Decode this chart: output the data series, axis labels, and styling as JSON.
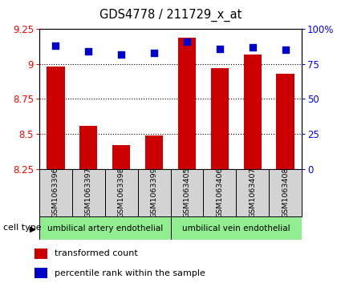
{
  "title": "GDS4778 / 211729_x_at",
  "samples": [
    "GSM1063396",
    "GSM1063397",
    "GSM1063398",
    "GSM1063399",
    "GSM1063405",
    "GSM1063406",
    "GSM1063407",
    "GSM1063408"
  ],
  "transformed_counts": [
    8.98,
    8.56,
    8.42,
    8.49,
    9.19,
    8.97,
    9.07,
    8.93
  ],
  "percentile_ranks": [
    88,
    84,
    82,
    83,
    91,
    86,
    87,
    85
  ],
  "ylim_left": [
    8.25,
    9.25
  ],
  "ylim_right": [
    0,
    100
  ],
  "yticks_left": [
    8.25,
    8.5,
    8.75,
    9.0,
    9.25
  ],
  "ytick_labels_left": [
    "8.25",
    "8.5",
    "8.75",
    "9",
    "9.25"
  ],
  "yticks_right": [
    0,
    25,
    50,
    75,
    100
  ],
  "ytick_labels_right": [
    "0",
    "25",
    "50",
    "75",
    "100%"
  ],
  "groups": [
    {
      "label": "umbilical artery endothelial",
      "start": 0,
      "end": 3,
      "color": "#90EE90"
    },
    {
      "label": "umbilical vein endothelial",
      "start": 4,
      "end": 7,
      "color": "#90EE90"
    }
  ],
  "bar_color": "#CC0000",
  "dot_color": "#0000CC",
  "bar_width": 0.55,
  "dot_size": 35,
  "sample_box_color": "#d3d3d3",
  "legend_items": [
    "transformed count",
    "percentile rank within the sample"
  ]
}
